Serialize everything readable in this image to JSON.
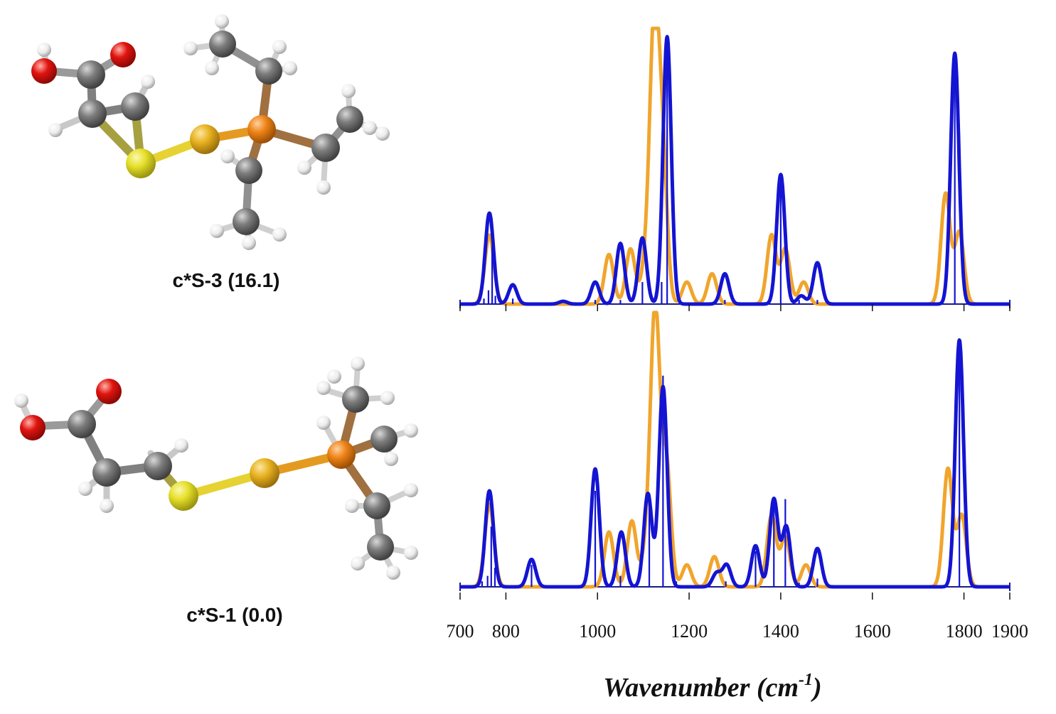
{
  "molecules": [
    {
      "label": "c*S-3 (16.1)"
    },
    {
      "label": "c*S-1 (0.0)"
    }
  ],
  "colors": {
    "calculated": "#1414d2",
    "experimental": "#f0a52c",
    "oxygen": "#e0140f",
    "carbon": "#7d7d7d",
    "hydrogen": "#f4f4f4",
    "sulfur_yellow": "#e6e02a",
    "sulfur_gold": "#e8b221",
    "phosphorus": "#ee8417"
  },
  "chart_data": [
    {
      "type": "line",
      "panel": "top",
      "xlim": [
        700,
        1900
      ],
      "xticks": [
        700,
        800,
        1000,
        1200,
        1400,
        1600,
        1800,
        1900
      ],
      "xlabel": "Wavenumber",
      "xlabel_unit": "(cm",
      "xlabel_sup": "-1",
      "xlabel_close": ")",
      "ylim": [
        0,
        1
      ],
      "series": [
        {
          "role": "calculated",
          "color": "#1414d2",
          "sigma": 9,
          "peaks": [
            [
              764,
              0.33
            ],
            [
              815,
              0.07
            ],
            [
              925,
              0.01
            ],
            [
              995,
              0.08
            ],
            [
              1050,
              0.22
            ],
            [
              1098,
              0.24
            ],
            [
              1152,
              0.97
            ],
            [
              1278,
              0.11
            ],
            [
              1400,
              0.47
            ],
            [
              1445,
              0.03
            ],
            [
              1480,
              0.15
            ],
            [
              1780,
              0.91
            ]
          ]
        },
        {
          "role": "experimental",
          "color": "#f0a52c",
          "sigma": 10,
          "peaks": [
            [
              764,
              0.25
            ],
            [
              1025,
              0.18
            ],
            [
              1072,
              0.2
            ],
            [
              1105,
              0.13
            ],
            [
              1124,
              0.99
            ],
            [
              1142,
              0.52
            ],
            [
              1195,
              0.08
            ],
            [
              1250,
              0.11
            ],
            [
              1380,
              0.25
            ],
            [
              1410,
              0.2
            ],
            [
              1450,
              0.08
            ],
            [
              1760,
              0.4
            ],
            [
              1790,
              0.26
            ]
          ]
        }
      ],
      "sticks": [
        [
          752,
          0.02
        ],
        [
          762,
          0.05
        ],
        [
          770,
          0.21
        ],
        [
          777,
          0.03
        ],
        [
          815,
          0.02
        ],
        [
          995,
          0.015
        ],
        [
          1050,
          0.015
        ],
        [
          1098,
          0.08
        ],
        [
          1140,
          0.08
        ],
        [
          1152,
          0.94
        ],
        [
          1278,
          0.015
        ],
        [
          1400,
          0.47
        ],
        [
          1440,
          0.015
        ],
        [
          1480,
          0.015
        ],
        [
          1780,
          0.9
        ]
      ]
    },
    {
      "type": "line",
      "panel": "bottom",
      "xlim": [
        700,
        1900
      ],
      "ylim": [
        0,
        1
      ],
      "series": [
        {
          "role": "calculated",
          "color": "#1414d2",
          "sigma": 9,
          "peaks": [
            [
              764,
              0.35
            ],
            [
              856,
              0.1
            ],
            [
              995,
              0.43
            ],
            [
              1052,
              0.2
            ],
            [
              1110,
              0.34
            ],
            [
              1143,
              0.73
            ],
            [
              1260,
              0.05
            ],
            [
              1282,
              0.08
            ],
            [
              1345,
              0.15
            ],
            [
              1385,
              0.32
            ],
            [
              1412,
              0.22
            ],
            [
              1480,
              0.14
            ],
            [
              1790,
              0.9
            ]
          ]
        },
        {
          "role": "experimental",
          "color": "#f0a52c",
          "sigma": 10,
          "peaks": [
            [
              764,
              0.3
            ],
            [
              1025,
              0.2
            ],
            [
              1075,
              0.24
            ],
            [
              1108,
              0.14
            ],
            [
              1126,
              0.99
            ],
            [
              1150,
              0.45
            ],
            [
              1195,
              0.08
            ],
            [
              1255,
              0.11
            ],
            [
              1380,
              0.26
            ],
            [
              1410,
              0.18
            ],
            [
              1455,
              0.08
            ],
            [
              1765,
              0.43
            ],
            [
              1795,
              0.26
            ]
          ]
        }
      ],
      "sticks": [
        [
          748,
          0.02
        ],
        [
          760,
          0.04
        ],
        [
          768,
          0.22
        ],
        [
          776,
          0.07
        ],
        [
          856,
          0.08
        ],
        [
          995,
          0.35
        ],
        [
          1050,
          0.04
        ],
        [
          1113,
          0.3
        ],
        [
          1143,
          0.77
        ],
        [
          1172,
          0.02
        ],
        [
          1245,
          0.02
        ],
        [
          1280,
          0.02
        ],
        [
          1345,
          0.13
        ],
        [
          1385,
          0.32
        ],
        [
          1410,
          0.32
        ],
        [
          1440,
          0.015
        ],
        [
          1480,
          0.03
        ],
        [
          1790,
          0.88
        ]
      ]
    }
  ]
}
